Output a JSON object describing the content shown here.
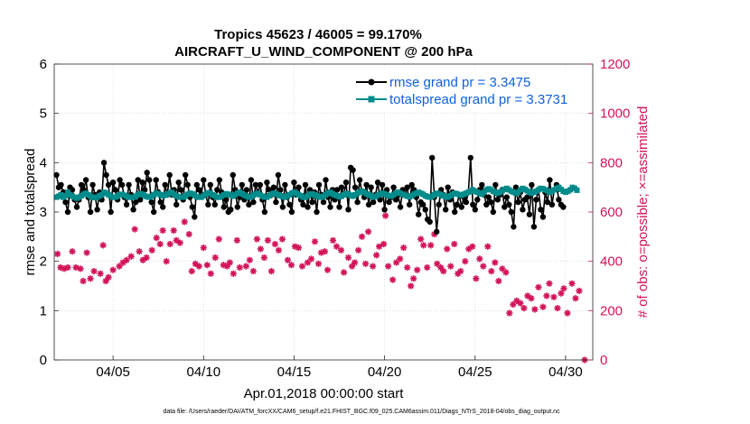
{
  "chart_data": {
    "type": "line",
    "title": "Tropics 45623 / 46005 = 99.170%",
    "subtitle": "AIRCRAFT_U_WIND_COMPONENT @ 200 hPa",
    "xlabel": "Apr.01,2018 00:00:00 start",
    "ylabel_left": "rmse and totalspread",
    "ylabel_right": "# of obs: o=possible; ×=assimilated",
    "footnote": "data file: /Users/raeder/DAI/ATM_forcXX/CAM6_setup/f.e21.FHIST_BGC.f09_025.CAM6assim.011/Diags_NTrS_2018-04/obs_diag_output.nc",
    "x_range_days": [
      0.75,
      30.5
    ],
    "x_ticks": [
      {
        "label": "04/05",
        "day": 4
      },
      {
        "label": "04/10",
        "day": 9
      },
      {
        "label": "04/15",
        "day": 14
      },
      {
        "label": "04/20",
        "day": 19
      },
      {
        "label": "04/25",
        "day": 24
      },
      {
        "label": "04/30",
        "day": 29
      }
    ],
    "y_left": {
      "range": [
        0,
        6
      ],
      "ticks": [
        "0",
        "1",
        "2",
        "3",
        "4",
        "5",
        "6"
      ]
    },
    "y_right": {
      "range": [
        0,
        1200
      ],
      "ticks": [
        "0",
        "200",
        "400",
        "600",
        "800",
        "1000",
        "1200"
      ]
    },
    "x_start_day": 0.875,
    "x_step_day": 0.125,
    "series": [
      {
        "name": "rmse",
        "legend": "rmse grand pr = 3.3475",
        "color": "#000000",
        "axis": "left",
        "values": [
          3.75,
          3.5,
          3.55,
          3.4,
          3.2,
          3.0,
          3.5,
          3.45,
          3.25,
          3.1,
          3.25,
          3.55,
          3.45,
          3.65,
          3.3,
          3.0,
          3.55,
          3.35,
          3.05,
          3.4,
          3.25,
          4.0,
          3.75,
          3.55,
          3.0,
          3.6,
          3.45,
          3.25,
          3.65,
          3.55,
          3.3,
          3.15,
          3.55,
          3.35,
          3.05,
          3.2,
          3.65,
          3.25,
          3.6,
          3.45,
          3.8,
          3.65,
          3.2,
          3.0,
          3.65,
          3.4,
          3.2,
          3.1,
          3.55,
          3.35,
          3.75,
          3.35,
          3.45,
          3.15,
          3.6,
          3.45,
          3.25,
          3.75,
          3.55,
          3.3,
          3.1,
          2.9,
          3.55,
          3.45,
          3.35,
          3.65,
          3.35,
          3.15,
          3.55,
          3.3,
          3.15,
          3.45,
          3.65,
          3.4,
          3.1,
          3.25,
          3.0,
          3.05,
          3.75,
          3.45,
          3.1,
          3.3,
          3.55,
          3.25,
          3.45,
          3.15,
          3.65,
          3.2,
          3.55,
          3.4,
          3.55,
          3.25,
          3.0,
          3.6,
          3.45,
          3.35,
          3.5,
          3.2,
          3.75,
          3.45,
          3.1,
          3.55,
          3.3,
          3.15,
          3.0,
          3.6,
          3.35,
          3.5,
          3.25,
          3.15,
          3.55,
          3.1,
          3.45,
          3.2,
          3.4,
          3.0,
          3.55,
          3.35,
          3.2,
          3.65,
          3.3,
          3.1,
          3.45,
          3.25,
          3.45,
          3.1,
          3.5,
          3.35,
          3.6,
          3.05,
          3.9,
          3.85,
          3.5,
          3.2,
          3.65,
          3.4,
          3.3,
          3.55,
          3.15,
          3.5,
          3.2,
          3.35,
          3.6,
          3.25,
          3.55,
          3.05,
          3.45,
          3.2,
          3.3,
          3.5,
          3.25,
          3.35,
          3.1,
          3.45,
          3.35,
          3.5,
          3.15,
          3.55,
          3.45,
          3.3,
          2.95,
          3.2,
          3.15,
          3.05,
          2.85,
          2.8,
          4.1,
          3.3,
          2.6,
          3.15,
          3.45,
          3.35,
          3.05,
          3.5,
          3.25,
          3.4,
          3.0,
          3.15,
          3.35,
          3.1,
          3.3,
          3.2,
          3.4,
          4.1,
          3.15,
          3.05,
          3.25,
          3.45,
          3.55,
          3.35,
          3.15,
          3.3,
          3.2,
          3.0,
          3.55,
          3.25,
          3.35,
          3.45,
          3.1,
          3.3,
          3.15,
          3.0,
          2.7,
          3.5,
          3.2,
          3.4,
          3.05,
          3.25,
          3.3,
          2.95,
          3.55,
          2.7,
          3.25,
          3.45,
          3.05,
          2.9,
          3.4,
          3.2,
          3.65,
          3.15,
          3.45,
          3.55,
          3.25,
          3.15,
          3.1
        ]
      },
      {
        "name": "totalspread",
        "legend": "totalspread grand pr = 3.3731",
        "color": "#008b8b",
        "axis": "left",
        "values": [
          3.3,
          3.32,
          3.35,
          3.3,
          3.33,
          3.4,
          3.35,
          3.32,
          3.3,
          3.28,
          3.3,
          3.33,
          3.36,
          3.38,
          3.35,
          3.32,
          3.3,
          3.29,
          3.3,
          3.33,
          3.35,
          3.4,
          3.38,
          3.35,
          3.32,
          3.3,
          3.3,
          3.32,
          3.35,
          3.36,
          3.34,
          3.32,
          3.3,
          3.3,
          3.3,
          3.32,
          3.35,
          3.37,
          3.36,
          3.33,
          3.31,
          3.3,
          3.32,
          3.35,
          3.38,
          3.37,
          3.35,
          3.33,
          3.34,
          3.36,
          3.38,
          3.4,
          3.36,
          3.33,
          3.31,
          3.3,
          3.3,
          3.32,
          3.36,
          3.38,
          3.37,
          3.34,
          3.31,
          3.3,
          3.3,
          3.33,
          3.36,
          3.39,
          3.38,
          3.35,
          3.33,
          3.3,
          3.3,
          3.32,
          3.35,
          3.37,
          3.36,
          3.34,
          3.32,
          3.35,
          3.38,
          3.4,
          3.37,
          3.34,
          3.32,
          3.3,
          3.31,
          3.34,
          3.36,
          3.38,
          3.35,
          3.32,
          3.3,
          3.3,
          3.33,
          3.36,
          3.38,
          3.37,
          3.35,
          3.33,
          3.31,
          3.3,
          3.32,
          3.35,
          3.38,
          3.4,
          3.38,
          3.35,
          3.33,
          3.3,
          3.3,
          3.33,
          3.36,
          3.37,
          3.35,
          3.33,
          3.31,
          3.3,
          3.32,
          3.35,
          3.38,
          3.4,
          3.37,
          3.35,
          3.33,
          3.31,
          3.32,
          3.35,
          3.37,
          3.36,
          3.34,
          3.32,
          3.35,
          3.38,
          3.4,
          3.42,
          3.4,
          3.37,
          3.35,
          3.33,
          3.3,
          3.31,
          3.34,
          3.36,
          3.38,
          3.37,
          3.35,
          3.33,
          3.32,
          3.35,
          3.38,
          3.4,
          3.38,
          3.36,
          3.34,
          3.32,
          3.31,
          3.33,
          3.36,
          3.38,
          3.4,
          3.38,
          3.36,
          3.33,
          3.31,
          3.3,
          3.32,
          3.35,
          3.38,
          3.37,
          3.35,
          3.33,
          3.31,
          3.3,
          3.33,
          3.36,
          3.38,
          3.37,
          3.35,
          3.34,
          3.36,
          3.38,
          3.4,
          3.42,
          3.45,
          3.42,
          3.4,
          3.38,
          3.36,
          3.4,
          3.45,
          3.47,
          3.45,
          3.42,
          3.4,
          3.38,
          3.4,
          3.43,
          3.46,
          3.48,
          3.45,
          3.42,
          3.4,
          3.38,
          3.4,
          3.45,
          3.48,
          3.46,
          3.43,
          3.4,
          3.38,
          3.4,
          3.42,
          3.45,
          3.48,
          3.47,
          3.45,
          3.43,
          3.4,
          3.42,
          3.45,
          3.48,
          3.5,
          3.46,
          3.42,
          3.4,
          3.42,
          3.45,
          3.5,
          3.48,
          3.44
        ]
      },
      {
        "name": "obs_assimilated",
        "legend": "",
        "color": "#d2145a",
        "axis": "right",
        "marker": "asterisk",
        "points": [
          [
            0.93,
            430
          ],
          [
            1.1,
            375
          ],
          [
            1.3,
            370
          ],
          [
            1.5,
            375
          ],
          [
            1.75,
            440
          ],
          [
            1.95,
            375
          ],
          [
            2.2,
            370
          ],
          [
            2.35,
            320
          ],
          [
            2.55,
            435
          ],
          [
            2.75,
            330
          ],
          [
            2.95,
            360
          ],
          [
            3.3,
            350
          ],
          [
            3.45,
            465
          ],
          [
            3.6,
            320
          ],
          [
            3.75,
            335
          ],
          [
            4.0,
            365
          ],
          [
            4.35,
            380
          ],
          [
            4.55,
            395
          ],
          [
            4.75,
            405
          ],
          [
            5.0,
            420
          ],
          [
            5.2,
            530
          ],
          [
            5.45,
            440
          ],
          [
            5.65,
            405
          ],
          [
            5.85,
            415
          ],
          [
            6.15,
            445
          ],
          [
            6.4,
            495
          ],
          [
            6.6,
            470
          ],
          [
            6.75,
            525
          ],
          [
            6.95,
            400
          ],
          [
            7.15,
            470
          ],
          [
            7.35,
            525
          ],
          [
            7.5,
            485
          ],
          [
            7.7,
            475
          ],
          [
            7.95,
            560
          ],
          [
            8.2,
            510
          ],
          [
            8.35,
            360
          ],
          [
            8.55,
            390
          ],
          [
            8.75,
            380
          ],
          [
            9.0,
            455
          ],
          [
            9.2,
            385
          ],
          [
            9.4,
            350
          ],
          [
            9.65,
            415
          ],
          [
            9.85,
            490
          ],
          [
            10.1,
            385
          ],
          [
            10.3,
            380
          ],
          [
            10.45,
            395
          ],
          [
            10.65,
            350
          ],
          [
            10.85,
            485
          ],
          [
            11.0,
            375
          ],
          [
            11.35,
            380
          ],
          [
            11.55,
            405
          ],
          [
            11.75,
            360
          ],
          [
            11.95,
            490
          ],
          [
            12.15,
            450
          ],
          [
            12.35,
            415
          ],
          [
            12.55,
            485
          ],
          [
            12.75,
            360
          ],
          [
            12.95,
            470
          ],
          [
            13.15,
            445
          ],
          [
            13.35,
            490
          ],
          [
            13.65,
            405
          ],
          [
            13.85,
            385
          ],
          [
            14.05,
            460
          ],
          [
            14.25,
            455
          ],
          [
            14.45,
            380
          ],
          [
            14.75,
            395
          ],
          [
            14.95,
            410
          ],
          [
            15.15,
            480
          ],
          [
            15.35,
            390
          ],
          [
            15.5,
            435
          ],
          [
            15.7,
            440
          ],
          [
            15.85,
            365
          ],
          [
            16.15,
            485
          ],
          [
            16.35,
            460
          ],
          [
            16.6,
            445
          ],
          [
            16.75,
            355
          ],
          [
            17.0,
            415
          ],
          [
            17.2,
            380
          ],
          [
            17.35,
            395
          ],
          [
            17.55,
            445
          ],
          [
            17.75,
            500
          ],
          [
            17.95,
            390
          ],
          [
            18.1,
            520
          ],
          [
            18.35,
            380
          ],
          [
            18.55,
            425
          ],
          [
            18.7,
            460
          ],
          [
            18.95,
            470
          ],
          [
            19.05,
            585
          ],
          [
            19.2,
            380
          ],
          [
            19.45,
            325
          ],
          [
            19.65,
            395
          ],
          [
            19.85,
            410
          ],
          [
            20.05,
            455
          ],
          [
            20.25,
            375
          ],
          [
            20.45,
            300
          ],
          [
            20.6,
            330
          ],
          [
            20.8,
            365
          ],
          [
            21.0,
            490
          ],
          [
            21.15,
            465
          ],
          [
            21.35,
            375
          ],
          [
            21.55,
            465
          ],
          [
            21.75,
            510
          ],
          [
            21.9,
            390
          ],
          [
            22.1,
            375
          ],
          [
            22.25,
            360
          ],
          [
            22.45,
            450
          ],
          [
            22.65,
            380
          ],
          [
            22.85,
            470
          ],
          [
            23.05,
            350
          ],
          [
            23.2,
            360
          ],
          [
            23.45,
            400
          ],
          [
            23.65,
            450
          ],
          [
            23.85,
            460
          ],
          [
            24.05,
            330
          ],
          [
            24.25,
            410
          ],
          [
            24.45,
            380
          ],
          [
            24.7,
            460
          ],
          [
            24.9,
            360
          ],
          [
            25.1,
            395
          ],
          [
            25.3,
            320
          ],
          [
            25.5,
            370
          ],
          [
            25.7,
            355
          ],
          [
            25.9,
            190
          ],
          [
            26.1,
            225
          ],
          [
            26.3,
            240
          ],
          [
            26.5,
            230
          ],
          [
            26.7,
            210
          ],
          [
            26.9,
            260
          ],
          [
            27.1,
            250
          ],
          [
            27.3,
            205
          ],
          [
            27.5,
            295
          ],
          [
            27.75,
            215
          ],
          [
            27.95,
            260
          ],
          [
            28.1,
            310
          ],
          [
            28.35,
            255
          ],
          [
            28.55,
            210
          ],
          [
            28.75,
            270
          ],
          [
            28.9,
            290
          ],
          [
            29.1,
            190
          ],
          [
            29.35,
            310
          ],
          [
            29.55,
            250
          ],
          [
            29.75,
            280
          ],
          [
            30.05,
            0
          ]
        ]
      }
    ]
  }
}
